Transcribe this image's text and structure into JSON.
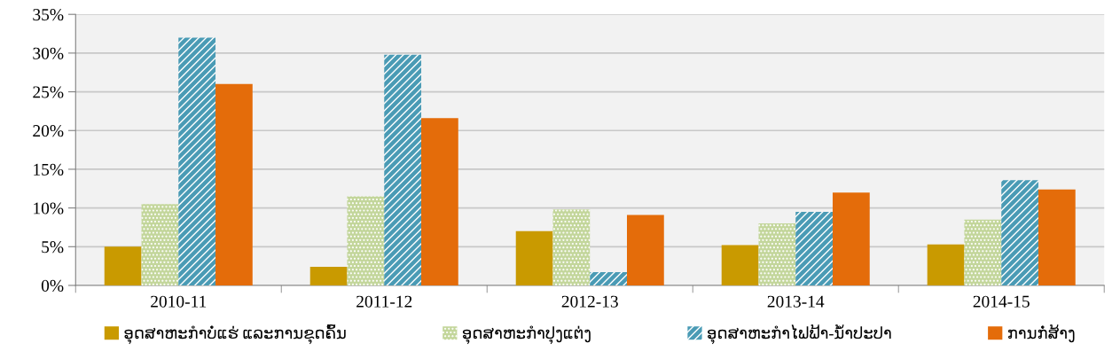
{
  "chart_data": {
    "type": "bar",
    "categories": [
      "2010-11",
      "2011-12",
      "2012-13",
      "2013-14",
      "2014-15"
    ],
    "series": [
      {
        "name": "ອຸດສາຫະກຳບໍ່ແຮ່ ແລະການຂຸດຄົ້ນ",
        "color": "#c99a00",
        "values": [
          5.0,
          2.4,
          7.0,
          5.2,
          5.3
        ]
      },
      {
        "name": "ອຸດສາຫະກຳປຸງແຕ່ງ",
        "color": "#c3d69b",
        "values": [
          10.5,
          11.5,
          9.8,
          8.0,
          8.5
        ]
      },
      {
        "name": "ອຸດສາຫະກຳໄຟຟ້າ-ນ້ຳປະປາ",
        "color": "#4a9bb5",
        "values": [
          32.0,
          29.8,
          1.7,
          9.5,
          13.6
        ]
      },
      {
        "name": "ການກໍ່ສ້າງ",
        "color": "#e46c0a",
        "values": [
          26.0,
          21.6,
          9.1,
          12.0,
          12.4
        ]
      }
    ],
    "ylim": [
      0,
      35
    ],
    "yticks": [
      {
        "value": 0,
        "label": "0%"
      },
      {
        "value": 5,
        "label": "5%"
      },
      {
        "value": 10,
        "label": "10%"
      },
      {
        "value": 15,
        "label": "15%"
      },
      {
        "value": 20,
        "label": "20%"
      },
      {
        "value": 25,
        "label": "25%"
      },
      {
        "value": 30,
        "label": "30%"
      },
      {
        "value": 35,
        "label": "35%"
      }
    ],
    "grid": "y",
    "legend": "bottom"
  }
}
